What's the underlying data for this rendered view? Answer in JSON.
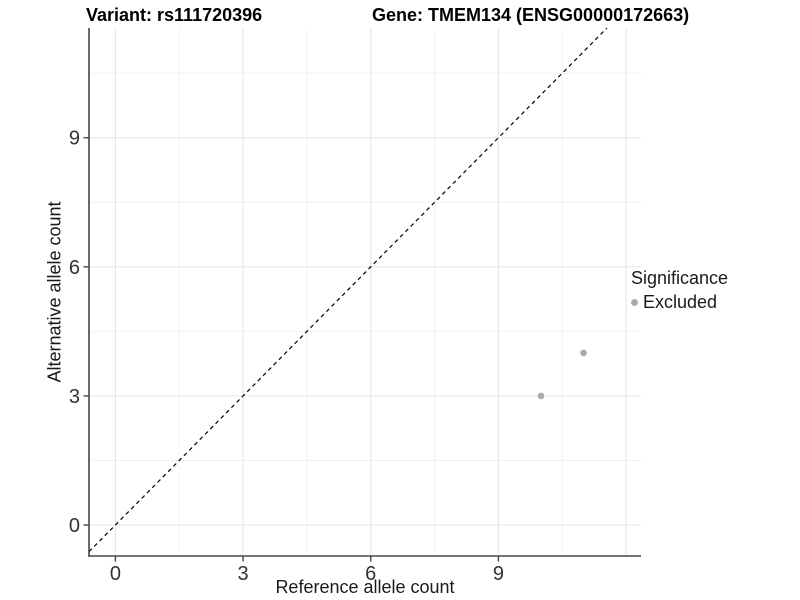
{
  "chart_data": {
    "type": "scatter",
    "title_left": "Variant: rs111720396",
    "title_right": "Gene: TMEM134 (ENSG00000172663)",
    "xlabel": "Reference allele count",
    "ylabel": "Alternative allele count",
    "xlim": [
      -0.62,
      12.35
    ],
    "ylim": [
      -0.72,
      11.55
    ],
    "x_ticks": [
      0,
      3,
      6,
      9
    ],
    "y_ticks": [
      0,
      3,
      6,
      9
    ],
    "x_grid_major": [
      0,
      3,
      6,
      9,
      12
    ],
    "x_grid_minor": [
      1.5,
      4.5,
      7.5,
      10.5
    ],
    "y_grid_major": [
      0,
      3,
      6,
      9
    ],
    "y_grid_minor": [
      1.5,
      4.5,
      7.5,
      10.5
    ],
    "grid": true,
    "legend": {
      "title": "Significance",
      "position": "right",
      "items": [
        {
          "label": "Excluded",
          "color": "#aaaaaa"
        }
      ]
    },
    "series": [
      {
        "name": "Excluded",
        "color": "#aaaaaa",
        "points": [
          {
            "x": 10,
            "y": 3
          },
          {
            "x": 11,
            "y": 4
          }
        ]
      }
    ],
    "reference_line": {
      "type": "identity",
      "slope": 1,
      "intercept": 0,
      "style": "dashed",
      "color": "#000000"
    }
  },
  "colors": {
    "background": "#ffffff",
    "axis_line": "#464646",
    "tick_text": "#333333",
    "grid_major": "#e4e4e4",
    "grid_minor": "#f2f2f2"
  }
}
